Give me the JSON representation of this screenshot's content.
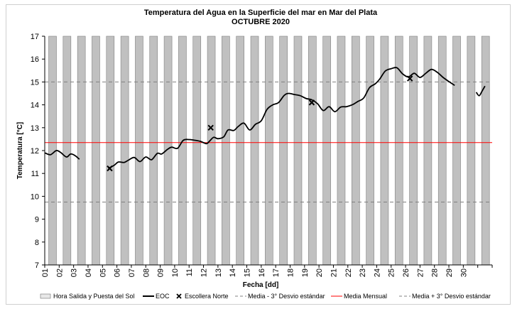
{
  "chart_data": {
    "type": "line",
    "title": "Temperatura del Agua en la Superficie del mar en Mar del Plata",
    "subtitle": "OCTUBRE 2020",
    "xlabel": "Fecha [dd]",
    "ylabel": "Temperatura [°C]",
    "ylim": [
      7,
      17
    ],
    "yticks": [
      "7",
      "8",
      "9",
      "10",
      "11",
      "12",
      "13",
      "14",
      "15",
      "16",
      "17"
    ],
    "xlim": [
      1,
      31.5
    ],
    "xticks": [
      "01",
      "02",
      "03",
      "04",
      "05",
      "06",
      "07",
      "08",
      "09",
      "10",
      "11",
      "12",
      "13",
      "14",
      "15",
      "16",
      "17",
      "18",
      "19",
      "20",
      "21",
      "22",
      "23",
      "24",
      "25",
      "26",
      "27",
      "28",
      "29",
      "30"
    ],
    "grid": false,
    "legend_position": "bottom",
    "legend": [
      {
        "name": "Hora Salida y Puesta del Sol",
        "color": "#c0c0c0"
      },
      {
        "name": "EOC",
        "color": "#000000"
      },
      {
        "name": "Escollera Norte",
        "color": "#000000"
      },
      {
        "name": "Media - 3° Desvio estándar",
        "color": "#808080"
      },
      {
        "name": "Media Mensual",
        "color": "#ff0000"
      },
      {
        "name": "Media + 3° Desvio estándar",
        "color": "#808080"
      }
    ],
    "daylight_bars": {
      "name": "Hora Salida y Puesta del Sol",
      "start_hour": 6.5,
      "end_hour": 19.5,
      "days": 31
    },
    "series": [
      {
        "name": "EOC",
        "segments": [
          {
            "x": [
              1.0,
              1.4,
              1.8,
              2.1,
              2.5,
              2.8,
              3.1,
              3.4
            ],
            "y": [
              11.9,
              11.82,
              12.0,
              11.92,
              11.72,
              11.85,
              11.78,
              11.62
            ]
          },
          {
            "x": [
              5.4,
              5.8,
              6.1,
              6.5,
              6.8,
              7.2,
              7.6,
              8.0,
              8.4,
              8.8,
              9.1,
              9.5,
              9.8,
              10.2,
              10.6,
              11.0,
              11.4,
              11.8,
              12.2,
              12.4,
              12.7,
              13.0,
              13.4,
              13.7,
              14.1,
              14.4,
              14.8,
              15.2,
              15.6,
              16.0,
              16.4,
              16.8,
              17.2,
              17.6,
              17.9,
              18.3,
              18.7,
              19.1,
              19.5,
              19.9,
              20.3,
              20.7,
              21.1,
              21.5,
              21.9,
              22.3,
              22.7,
              23.1,
              23.5,
              23.9,
              24.2,
              24.6,
              25.0,
              25.4,
              25.8,
              26.2,
              26.6,
              27.0,
              27.4,
              27.8,
              28.2,
              28.6,
              29.0,
              29.4
            ],
            "y": [
              11.22,
              11.35,
              11.5,
              11.48,
              11.58,
              11.7,
              11.52,
              11.72,
              11.6,
              11.88,
              11.85,
              12.05,
              12.15,
              12.1,
              12.45,
              12.48,
              12.45,
              12.4,
              12.3,
              12.4,
              12.58,
              12.52,
              12.6,
              12.9,
              12.88,
              13.05,
              13.2,
              12.9,
              13.15,
              13.3,
              13.8,
              14.0,
              14.1,
              14.42,
              14.5,
              14.45,
              14.4,
              14.28,
              14.22,
              14.05,
              13.75,
              13.92,
              13.7,
              13.9,
              13.92,
              14.0,
              14.15,
              14.3,
              14.75,
              14.92,
              15.12,
              15.48,
              15.58,
              15.62,
              15.35,
              15.22,
              15.38,
              15.2,
              15.38,
              15.55,
              15.42,
              15.2,
              15.02,
              14.85
            ]
          },
          {
            "x": [
              30.9,
              31.1,
              31.3,
              31.5
            ],
            "y": [
              14.55,
              14.4,
              14.6,
              14.82
            ]
          }
        ]
      },
      {
        "name": "Escollera Norte",
        "x": [
          5.5,
          12.5,
          19.5,
          26.3
        ],
        "y": [
          11.22,
          13.0,
          14.1,
          15.15
        ]
      },
      {
        "name": "Media - 3° Desvio estándar",
        "value": 9.75
      },
      {
        "name": "Media Mensual",
        "value": 12.35
      },
      {
        "name": "Media + 3° Desvio estándar",
        "value": 15.0
      }
    ]
  }
}
